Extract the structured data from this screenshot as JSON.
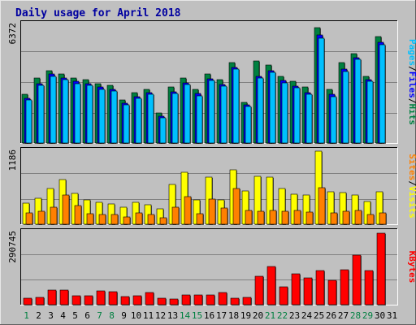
{
  "chart_data": {
    "title": "Daily usage for April 2018",
    "type": "bar",
    "x": [
      "1",
      "2",
      "3",
      "4",
      "5",
      "6",
      "7",
      "8",
      "9",
      "10",
      "11",
      "12",
      "13",
      "14",
      "15",
      "16",
      "17",
      "18",
      "19",
      "20",
      "21",
      "22",
      "23",
      "24",
      "25",
      "26",
      "27",
      "28",
      "29",
      "30",
      "31"
    ],
    "x_highlight": [
      "1",
      "7",
      "8",
      "14",
      "15",
      "21",
      "22",
      "28",
      "29"
    ],
    "panels": [
      {
        "name": "hits-files-pages",
        "ylabel": "Pages / Files / Hits",
        "max_label": "6372",
        "ymax": 6372,
        "grid": true,
        "series": [
          {
            "name": "Hits",
            "color": "#008040",
            "values": [
              2600,
              3500,
              3900,
              3700,
              3500,
              3400,
              3200,
              3100,
              2300,
              2700,
              2900,
              1600,
              3000,
              3500,
              2900,
              3700,
              3400,
              4300,
              2200,
              4400,
              4200,
              3600,
              3300,
              3000,
              6200,
              2900,
              4300,
              4800,
              3600,
              5700,
              0
            ]
          },
          {
            "name": "Files",
            "color": "#0000ff",
            "values": [
              2400,
              3200,
              3700,
              3500,
              3300,
              3200,
              3000,
              2900,
              2150,
              2500,
              2700,
              1450,
              2750,
              3250,
              2650,
              3450,
              3150,
              4050,
              2050,
              3600,
              3900,
              3350,
              3050,
              2700,
              5800,
              2600,
              3950,
              4600,
              3400,
              5400,
              0
            ]
          },
          {
            "name": "Pages",
            "color": "#00c0ff",
            "values": [
              2300,
              3100,
              3600,
              3400,
              3200,
              3100,
              2900,
              2800,
              2050,
              2400,
              2600,
              1350,
              2650,
              3150,
              2550,
              3350,
              3050,
              3950,
              1950,
              3500,
              3800,
              3250,
              2950,
              2600,
              5650,
              2500,
              3850,
              4500,
              3300,
              5300,
              0
            ]
          }
        ]
      },
      {
        "name": "visits-sites",
        "ylabel": "Sites / Visits",
        "max_label": "1186",
        "ymax": 1186,
        "grid": true,
        "series": [
          {
            "name": "Visits",
            "color": "#ffff00",
            "values": [
              340,
              420,
              580,
              720,
              500,
              400,
              350,
              330,
              280,
              350,
              320,
              250,
              640,
              840,
              390,
              760,
              390,
              880,
              540,
              780,
              770,
              580,
              490,
              480,
              1186,
              530,
              520,
              480,
              370,
              530,
              0
            ]
          },
          {
            "name": "Sites",
            "color": "#ff8000",
            "values": [
              190,
              210,
              280,
              470,
              300,
              170,
              160,
              160,
              120,
              180,
              160,
              110,
              280,
              450,
              170,
              410,
              260,
              580,
              220,
              210,
              220,
              210,
              230,
              200,
              590,
              190,
              210,
              230,
              160,
              190,
              0
            ]
          }
        ]
      },
      {
        "name": "kbytes",
        "ylabel": "KBytes",
        "max_label": "290745",
        "ymax": 290745,
        "grid": true,
        "series": [
          {
            "name": "KBytes",
            "color": "#ff0000",
            "values": [
              25000,
              28000,
              60000,
              58000,
              36000,
              36000,
              54000,
              52000,
              32000,
              35000,
              50000,
              25000,
              22000,
              38000,
              38000,
              38000,
              50000,
              25000,
              30000,
              115000,
              153000,
              72000,
              123000,
              107000,
              138000,
              99000,
              140000,
              198000,
              136000,
              286000,
              0
            ]
          }
        ]
      }
    ]
  }
}
